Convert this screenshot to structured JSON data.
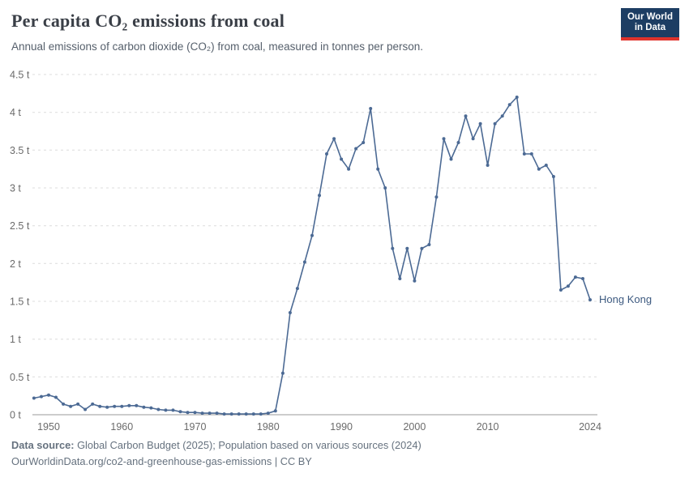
{
  "header": {
    "title": "Per capita CO₂ emissions from coal",
    "subtitle": "Annual emissions of carbon dioxide (CO₂) from coal, measured in tonnes per person.",
    "logo": {
      "line1": "Our World",
      "line2": "in Data"
    }
  },
  "series_label": "Hong Kong",
  "footer": {
    "source_label": "Data source:",
    "source_text": " Global Carbon Budget (2025); Population based on various sources (2024)",
    "link_text": "OurWorldinData.org/co2-and-greenhouse-gas-emissions | CC BY"
  },
  "colors": {
    "line": "#4c6a94",
    "grid": "#dcdcdc",
    "zero_line": "#9a9a9a",
    "axis_text": "#6b6b6b",
    "logo_bg": "#1d3d63",
    "logo_red": "#e0332c",
    "series_label": "#3d5a80"
  },
  "chart_data": {
    "type": "line",
    "title": "Per capita CO₂ emissions from coal",
    "subtitle": "Annual emissions of carbon dioxide (CO₂) from coal, measured in tonnes per person.",
    "xlabel": "",
    "ylabel": "Per capita CO₂ emissions from coal (tonnes per person)",
    "unit": "t",
    "ylim": [
      0,
      4.5
    ],
    "grid": true,
    "legend_position": "end-of-line",
    "y_tick_values": [
      0,
      0.5,
      1,
      1.5,
      2,
      2.5,
      3,
      3.5,
      4,
      4.5
    ],
    "y_tick_labels": [
      "0 t",
      "0.5 t",
      "1 t",
      "1.5 t",
      "2 t",
      "2.5 t",
      "3 t",
      "3.5 t",
      "4 t",
      "4.5 t"
    ],
    "x_ticks": [
      1950,
      1960,
      1970,
      1980,
      1990,
      2000,
      2010,
      2024
    ],
    "x": [
      1948,
      1949,
      1950,
      1951,
      1952,
      1953,
      1954,
      1955,
      1956,
      1957,
      1958,
      1959,
      1960,
      1961,
      1962,
      1963,
      1964,
      1965,
      1966,
      1967,
      1968,
      1969,
      1970,
      1971,
      1972,
      1973,
      1974,
      1975,
      1976,
      1977,
      1978,
      1979,
      1980,
      1981,
      1982,
      1983,
      1984,
      1985,
      1986,
      1987,
      1988,
      1989,
      1990,
      1991,
      1992,
      1993,
      1994,
      1995,
      1996,
      1997,
      1998,
      1999,
      2000,
      2001,
      2002,
      2003,
      2004,
      2005,
      2006,
      2007,
      2008,
      2009,
      2010,
      2011,
      2012,
      2013,
      2014,
      2015,
      2016,
      2017,
      2018,
      2019,
      2020,
      2021,
      2022,
      2023,
      2024
    ],
    "series": [
      {
        "name": "Hong Kong",
        "values": [
          0.22,
          0.24,
          0.26,
          0.23,
          0.14,
          0.11,
          0.14,
          0.07,
          0.14,
          0.11,
          0.1,
          0.11,
          0.11,
          0.12,
          0.12,
          0.1,
          0.09,
          0.07,
          0.06,
          0.06,
          0.04,
          0.03,
          0.03,
          0.02,
          0.02,
          0.02,
          0.01,
          0.01,
          0.01,
          0.01,
          0.01,
          0.01,
          0.02,
          0.05,
          0.55,
          1.35,
          1.67,
          2.02,
          2.37,
          2.9,
          3.45,
          3.65,
          3.38,
          3.25,
          3.52,
          3.6,
          4.05,
          3.25,
          3.0,
          2.2,
          1.8,
          2.2,
          1.77,
          2.2,
          2.25,
          2.88,
          3.65,
          3.38,
          3.6,
          3.95,
          3.65,
          3.85,
          3.3,
          3.85,
          3.95,
          4.1,
          4.2,
          3.45,
          3.45,
          3.25,
          3.3,
          3.15,
          1.65,
          1.7,
          1.82,
          1.8,
          1.52
        ]
      }
    ]
  }
}
